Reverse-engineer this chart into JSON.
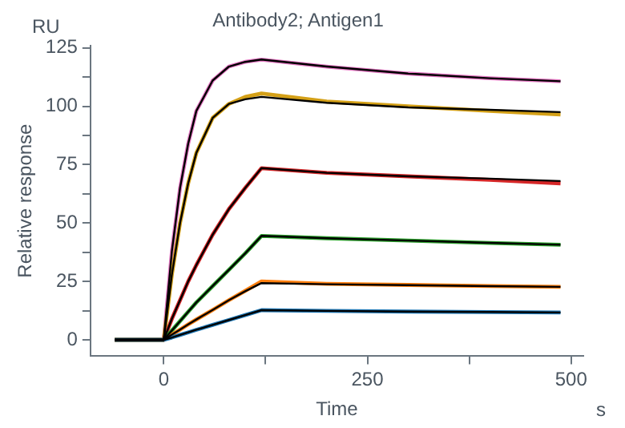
{
  "chart_data": {
    "type": "line",
    "title": "Antibody2; Antigen1",
    "xlabel": "Time",
    "ylabel": "Relative response",
    "annotations": [
      "RU",
      "s"
    ],
    "x": [
      -60,
      0,
      10,
      20,
      30,
      40,
      60,
      80,
      100,
      120,
      200,
      300,
      400,
      487
    ],
    "xlim": [
      -90,
      515
    ],
    "xticks": [
      0,
      {
        "value": 125,
        "label": null
      },
      250,
      {
        "value": 375,
        "label": null
      },
      500
    ],
    "ylim": [
      -7,
      126
    ],
    "yticks": [
      0,
      {
        "value": 12.5,
        "label": null
      },
      25,
      {
        "value": 37.5,
        "label": null
      },
      50,
      {
        "value": 62.5,
        "label": null
      },
      75,
      {
        "value": 87.5,
        "label": null
      },
      100,
      {
        "value": 112.5,
        "label": null
      },
      125
    ],
    "grid": false,
    "legend": false,
    "series": [
      {
        "color": "#e377c2",
        "values": [
          0,
          0,
          38,
          65,
          84,
          98,
          111,
          117,
          119,
          120,
          117,
          114,
          112,
          110.7
        ]
      },
      {
        "color": "#d4a017",
        "values": [
          0,
          0,
          28,
          50,
          67,
          80,
          95,
          101,
          104,
          105.5,
          102,
          100,
          98,
          96.5
        ]
      },
      {
        "color": "#d62728",
        "values": [
          0,
          0,
          9,
          17,
          25,
          32,
          45,
          56,
          65,
          73.5,
          71.5,
          70,
          68.5,
          67
        ]
      },
      {
        "color": "#2ca02c",
        "values": [
          0,
          0,
          4,
          8,
          12,
          16,
          23,
          30,
          37,
          44.5,
          43.5,
          42.5,
          41.5,
          40.7
        ]
      },
      {
        "color": "#ff7f0e",
        "values": [
          0,
          0,
          2.2,
          4.4,
          6.6,
          8.7,
          12.8,
          17,
          21,
          25,
          24,
          23.5,
          23,
          22.7
        ]
      },
      {
        "color": "#1f77b4",
        "values": [
          0,
          0,
          1,
          2.1,
          3.2,
          4.3,
          6.4,
          8.5,
          10.6,
          12.7,
          12.4,
          12.1,
          11.9,
          11.7
        ]
      },
      {
        "color": "#000000",
        "values": [
          0,
          0,
          38,
          65,
          84,
          98,
          111,
          117,
          119,
          120,
          117,
          114,
          112,
          110.7
        ]
      },
      {
        "color": "#000000",
        "values": [
          0,
          0,
          28,
          50,
          67,
          80,
          95,
          101,
          103,
          104,
          101.5,
          99.5,
          98.5,
          97.5
        ]
      },
      {
        "color": "#000000",
        "values": [
          0,
          0,
          9,
          17,
          25,
          32,
          45,
          56,
          65,
          73.5,
          71.5,
          70,
          69,
          68
        ]
      },
      {
        "color": "#000000",
        "values": [
          0,
          0,
          4,
          8,
          12,
          16,
          23,
          30,
          37,
          44.5,
          43.5,
          42.5,
          41.5,
          40.7
        ]
      },
      {
        "color": "#000000",
        "values": [
          0,
          0,
          2.2,
          4.4,
          6.6,
          8.7,
          12.8,
          17,
          20.8,
          24.3,
          23.8,
          23.4,
          23,
          22.7
        ]
      },
      {
        "color": "#000000",
        "values": [
          0,
          0,
          1,
          2.1,
          3.2,
          4.3,
          6.4,
          8.5,
          10.6,
          12.7,
          12.4,
          12.1,
          11.9,
          11.7
        ]
      }
    ]
  }
}
